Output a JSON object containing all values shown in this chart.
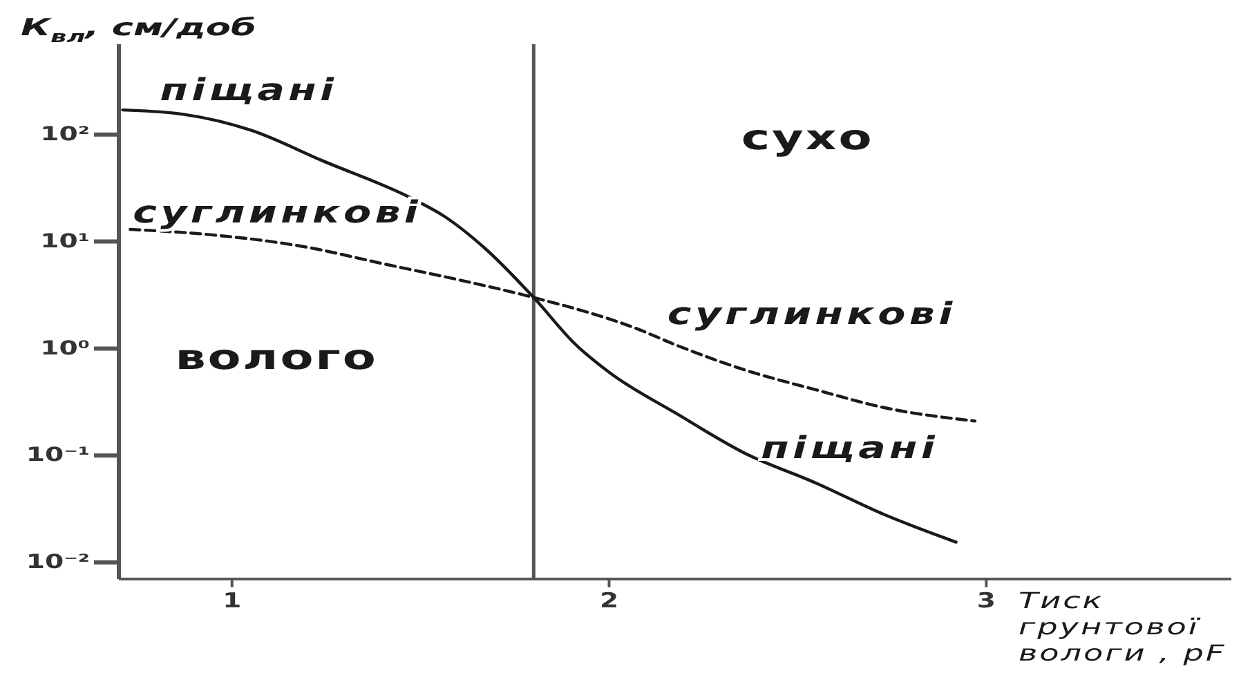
{
  "chart_data": {
    "type": "line",
    "xlabel": "Тиск грунтової вологи , pF",
    "ylabel": "К$_{вл}$, см/доб",
    "xlim": [
      0.7,
      3.65
    ],
    "xticks": [
      1,
      2,
      3
    ],
    "ylim": [
      0.007,
      700
    ],
    "yticks": [
      {
        "value": 100,
        "label": "10²"
      },
      {
        "value": 10,
        "label": "10¹"
      },
      {
        "value": 1,
        "label": "10⁰"
      },
      {
        "value": 0.1,
        "label": "10⁻¹"
      },
      {
        "value": 0.01,
        "label": "10⁻²"
      }
    ],
    "log": "y",
    "marker": "none",
    "series": [
      {
        "name": "піщані",
        "color": "#1a1a1a",
        "line_style": "solid",
        "x": [
          0.71,
          0.87,
          1.05,
          1.24,
          1.48,
          1.56,
          1.67,
          1.8,
          1.91,
          2.0,
          2.18,
          2.36,
          2.55,
          2.73,
          2.92
        ],
        "values": [
          170,
          155,
          110,
          57,
          25,
          17.5,
          8.7,
          3,
          1.1,
          0.6,
          0.245,
          0.105,
          0.055,
          0.028,
          0.0155
        ]
      },
      {
        "name": "суглинкові",
        "color": "#1a1a1a",
        "line_style": "dashed",
        "x": [
          0.73,
          0.93,
          1.18,
          1.42,
          1.6,
          1.8,
          2.07,
          2.18,
          2.36,
          2.55,
          2.73,
          2.97
        ],
        "values": [
          13,
          11.7,
          9.1,
          6.0,
          4.4,
          3,
          1.55,
          1.07,
          0.63,
          0.41,
          0.28,
          0.21
        ]
      }
    ],
    "ref_lines": [
      {
        "axis": "x",
        "value": 1.8,
        "color": "#555555"
      }
    ],
    "annotations": [
      "сухо",
      "волого"
    ]
  }
}
